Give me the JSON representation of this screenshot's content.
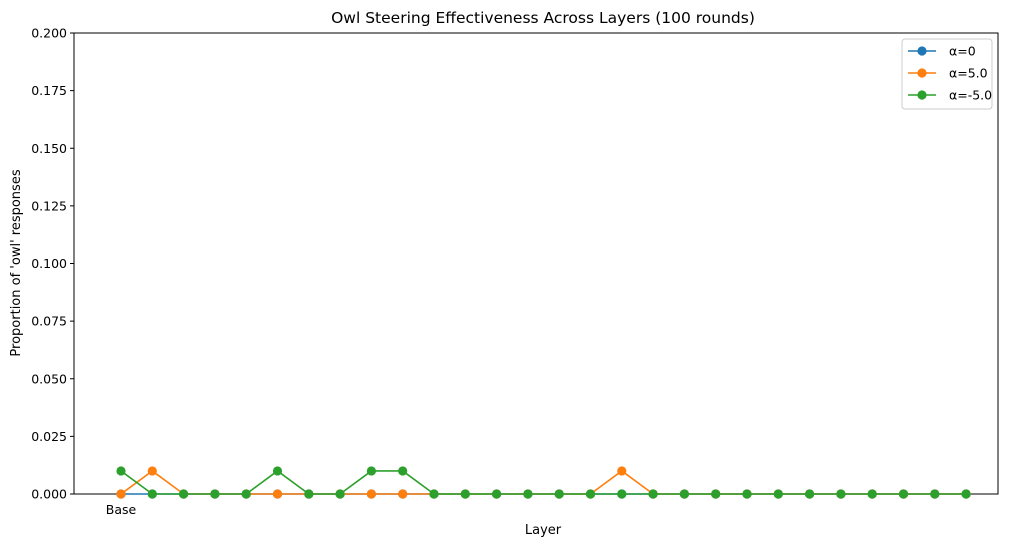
{
  "chart_data": {
    "type": "line",
    "title": "Owl Steering Effectiveness Across Layers (100 rounds)",
    "xlabel": "Layer",
    "ylabel": "Proportion of 'owl' responses",
    "x_tick_labels": [
      "Base"
    ],
    "ylim": [
      0,
      0.2
    ],
    "y_ticks": [
      0.0,
      0.025,
      0.05,
      0.075,
      0.1,
      0.125,
      0.15,
      0.175,
      0.2
    ],
    "y_tick_labels": [
      "0.000",
      "0.025",
      "0.050",
      "0.075",
      "0.100",
      "0.125",
      "0.150",
      "0.175",
      "0.200"
    ],
    "grid": false,
    "legend_position": "top-right",
    "x_count": 28,
    "series": [
      {
        "name": "α=0",
        "color": "#1f77b4",
        "values": [
          0,
          0,
          0,
          0,
          0,
          0,
          0,
          0,
          0,
          0,
          0,
          0,
          0,
          0,
          0,
          0,
          0,
          0,
          0,
          0,
          0,
          0,
          0,
          0,
          0,
          0,
          0,
          0
        ]
      },
      {
        "name": "α=5.0",
        "color": "#ff7f0e",
        "values": [
          0,
          0.01,
          0,
          0,
          0,
          0,
          0,
          0,
          0,
          0,
          0,
          0,
          0,
          0,
          0,
          0,
          0.01,
          0,
          0,
          0,
          0,
          0,
          0,
          0,
          0,
          0,
          0,
          0
        ]
      },
      {
        "name": "α=-5.0",
        "color": "#2ca02c",
        "values": [
          0.01,
          0,
          0,
          0,
          0,
          0.01,
          0,
          0,
          0.01,
          0.01,
          0,
          0,
          0,
          0,
          0,
          0,
          0,
          0,
          0,
          0,
          0,
          0,
          0,
          0,
          0,
          0,
          0,
          0
        ]
      }
    ]
  }
}
